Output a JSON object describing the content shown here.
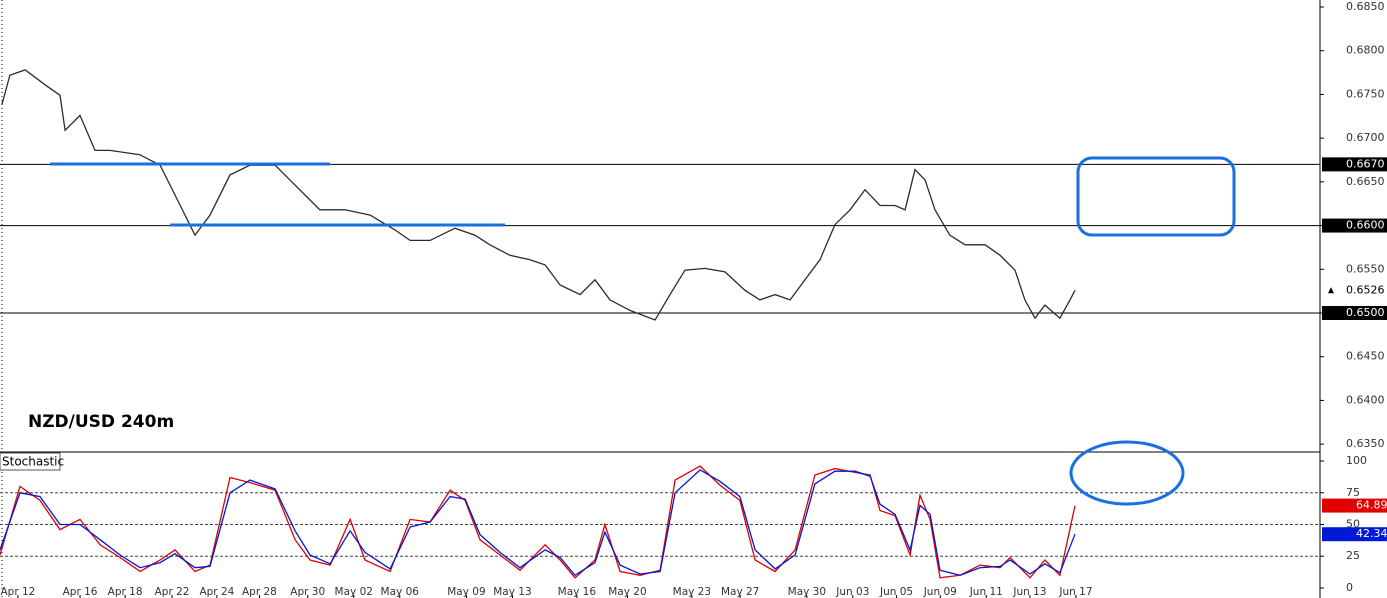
{
  "chart_data": [
    {
      "type": "line",
      "title": "NZD/USD 240m",
      "x": [
        -0.7,
        -0.35,
        0.31,
        1.18,
        1.83,
        2.05,
        2.7,
        3.35,
        4.0,
        5.3,
        6.18,
        6.83,
        7.7,
        8.35,
        9.22,
        10.09,
        11.18,
        11.83,
        12.48,
        13.13,
        14.22,
        15.31,
        16.39,
        17.05,
        17.92,
        19.0,
        19.87,
        20.52,
        21.39,
        22.26,
        22.92,
        23.57,
        24.44,
        25.09,
        25.74,
        26.61,
        27.7,
        28.35,
        29.0,
        29.87,
        30.74,
        31.61,
        32.26,
        32.92,
        33.57,
        34.22,
        34.87,
        35.52,
        36.18,
        36.83,
        37.48,
        38.13,
        38.57,
        39.0,
        39.44,
        39.87,
        40.52,
        41.18,
        42.05,
        42.7,
        43.35,
        43.78,
        44.22,
        44.65,
        45.3,
        45.74,
        45.96
      ],
      "series": [
        {
          "color": "#2b2b2b",
          "values": [
            0.6738,
            0.6772,
            0.6778,
            0.6761,
            0.6749,
            0.6709,
            0.6726,
            0.6686,
            0.6686,
            0.6681,
            0.6669,
            0.6635,
            0.6589,
            0.6612,
            0.6658,
            0.6669,
            0.6669,
            0.6652,
            0.6635,
            0.6618,
            0.6618,
            0.6612,
            0.6595,
            0.6583,
            0.6583,
            0.6597,
            0.6589,
            0.6578,
            0.6566,
            0.6561,
            0.6555,
            0.6532,
            0.6521,
            0.6538,
            0.6515,
            0.6503,
            0.6492,
            0.6521,
            0.6549,
            0.6551,
            0.6547,
            0.6526,
            0.6515,
            0.6521,
            0.6515,
            0.6538,
            0.6561,
            0.6601,
            0.6618,
            0.6641,
            0.6623,
            0.6623,
            0.6618,
            0.6664,
            0.6652,
            0.6618,
            0.6589,
            0.6578,
            0.6578,
            0.6566,
            0.6549,
            0.6515,
            0.6494,
            0.6509,
            0.6494,
            0.6515,
            0.6526
          ]
        }
      ],
      "xlim": [
        -0.78,
        56.61
      ],
      "ylim": [
        0.6341,
        0.6858
      ],
      "yticks": [
        {
          "value": 0.635,
          "label": "0.6350"
        },
        {
          "value": 0.64,
          "label": "0.6400"
        },
        {
          "value": 0.645,
          "label": "0.6450"
        },
        {
          "value": 0.65,
          "label": "0.6500"
        },
        {
          "value": 0.655,
          "label": "0.6550"
        },
        {
          "value": 0.66,
          "label": "0.6600"
        },
        {
          "value": 0.665,
          "label": "0.6650"
        },
        {
          "value": 0.67,
          "label": "0.6700"
        },
        {
          "value": 0.675,
          "label": "0.6750"
        },
        {
          "value": 0.68,
          "label": "0.6800"
        },
        {
          "value": 0.685,
          "label": "0.6850"
        }
      ],
      "hlines": [
        {
          "value": 0.667,
          "label": "0.6670"
        },
        {
          "value": 0.66,
          "label": "0.6600"
        },
        {
          "value": 0.65,
          "label": "0.6500"
        }
      ],
      "last_value": {
        "value": 0.6526,
        "label": "0.6526"
      }
    },
    {
      "type": "line",
      "title": "Stochastic",
      "x": [
        -0.78,
        0.09,
        0.96,
        1.83,
        2.7,
        3.57,
        4.44,
        5.31,
        6.18,
        6.83,
        7.7,
        8.35,
        9.22,
        10.09,
        11.18,
        12.05,
        12.7,
        13.57,
        14.44,
        15.09,
        16.18,
        17.05,
        17.92,
        18.79,
        19.44,
        20.09,
        20.96,
        21.83,
        22.92,
        23.57,
        24.22,
        25.09,
        25.52,
        26.18,
        27.05,
        27.92,
        28.57,
        29.66,
        30.52,
        31.39,
        32.05,
        32.92,
        33.79,
        34.65,
        35.52,
        36.39,
        37.05,
        37.48,
        38.13,
        38.79,
        39.22,
        39.66,
        40.09,
        40.96,
        41.83,
        42.7,
        43.13,
        44.0,
        44.65,
        45.3,
        45.96
      ],
      "series": [
        {
          "color": "#e00000",
          "values": [
            26,
            80,
            69,
            46,
            54,
            34,
            24,
            13,
            22,
            30,
            13,
            18,
            87,
            83,
            77,
            38,
            22,
            18,
            54,
            22,
            13,
            54,
            52,
            77,
            69,
            38,
            26,
            14,
            34,
            22,
            8,
            22,
            50,
            13,
            10,
            14,
            85,
            96,
            81,
            69,
            22,
            13,
            30,
            89,
            94,
            91,
            89,
            61,
            57,
            26,
            73,
            54,
            8,
            10,
            18,
            16,
            24,
            8,
            22,
            10,
            64.89
          ]
        },
        {
          "color": "#0018d8",
          "values": [
            30,
            75,
            72,
            50,
            50,
            38,
            26,
            16,
            20,
            27,
            16,
            17,
            75,
            85,
            78,
            45,
            26,
            19,
            45,
            28,
            15,
            48,
            52,
            72,
            70,
            42,
            28,
            16,
            30,
            24,
            10,
            20,
            44,
            18,
            11,
            13,
            75,
            93,
            84,
            72,
            30,
            15,
            26,
            82,
            92,
            92,
            88,
            66,
            58,
            30,
            65,
            58,
            14,
            10,
            16,
            17,
            22,
            11,
            19,
            12,
            42.34
          ]
        }
      ],
      "xlim": [
        -0.78,
        56.61
      ],
      "ylim": [
        -7.9,
        107.1
      ],
      "yticks": [
        0,
        25,
        50,
        75,
        100
      ],
      "hlines": [
        25,
        50,
        75
      ],
      "xticks": [
        {
          "value": 0,
          "label": "Apr 12"
        },
        {
          "value": 2.7,
          "label": "Apr 16"
        },
        {
          "value": 4.66,
          "label": "Apr 18"
        },
        {
          "value": 6.7,
          "label": "Apr 22"
        },
        {
          "value": 8.65,
          "label": "Apr 24"
        },
        {
          "value": 10.5,
          "label": "Apr 28"
        },
        {
          "value": 12.6,
          "label": "Apr 30"
        },
        {
          "value": 14.6,
          "label": "May 02"
        },
        {
          "value": 16.6,
          "label": "May 06"
        },
        {
          "value": 19.5,
          "label": "May 09"
        },
        {
          "value": 21.5,
          "label": "May 13"
        },
        {
          "value": 24.3,
          "label": "May 16"
        },
        {
          "value": 26.5,
          "label": "May 20"
        },
        {
          "value": 29.3,
          "label": "May 23"
        },
        {
          "value": 31.4,
          "label": "May 27"
        },
        {
          "value": 34.3,
          "label": "May 30"
        },
        {
          "value": 36.3,
          "label": "Jun 03"
        },
        {
          "value": 38.2,
          "label": "Jun 05"
        },
        {
          "value": 40.1,
          "label": "Jun 09"
        },
        {
          "value": 42.1,
          "label": "Jun 11"
        },
        {
          "value": 44.0,
          "label": "Jun 13"
        },
        {
          "value": 46.0,
          "label": "Jun 17"
        }
      ]
    }
  ]
}
